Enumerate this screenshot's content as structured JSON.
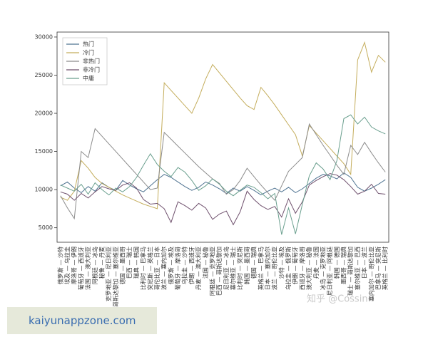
{
  "chart_data": {
    "type": "line",
    "categories": [
      "俄罗斯 — 沙特",
      "埃及 — 乌拉圭",
      "摩洛哥 — 伊朗",
      "葡萄牙 — 西班牙",
      "法国 — 澳大利亚",
      "阿根廷 — 冰岛",
      "秘鲁 — 丹麦",
      "克罗地亚 — 尼日利亚",
      "哥斯达黎加 — 塞尔维亚",
      "德国 — 墨西哥",
      "巴西 — 瑞士",
      "瑞典 — 韩国",
      "比利时 — 巴拿马",
      "突尼斯 — 英格兰",
      "哥伦比亚 — 日本",
      "波兰 — 塞内加尔",
      "俄罗斯 — 埃及",
      "葡萄牙 — 摩洛哥",
      "乌拉圭 — 沙特",
      "伊朗 — 西班牙",
      "丹麦 — 澳大利亚",
      "法国 — 秘鲁",
      "阿根廷 — 克罗地亚",
      "巴西 — 哥斯达黎加",
      "尼日利亚 — 冰岛",
      "塞尔维亚 — 瑞士",
      "比利时 — 突尼斯",
      "韩国 — 墨西哥",
      "德国 — 瑞典",
      "英格兰 — 巴拿马",
      "日本 — 塞内加尔",
      "波兰 — 哥伦比亚",
      "沙特 — 埃及",
      "乌拉圭 — 俄罗斯",
      "伊朗 — 葡萄牙",
      "西班牙 — 摩洛哥",
      "澳大利亚 — 秘鲁",
      "丹麦 — 法国",
      "冰岛 — 克罗地亚",
      "尼日利亚 — 阿根廷",
      "韩国 — 德国",
      "墨西哥 — 瑞典",
      "瑞士 — 哥斯达黎加",
      "塞尔维亚 — 巴西",
      "日本 — 波兰",
      "塞内加尔 — 哥伦比亚",
      "巴拿马 — 突尼斯",
      "英格兰 — 比利时"
    ],
    "series": [
      {
        "name": "热门",
        "color": "#4f7391",
        "values": [
          10500,
          11000,
          10200,
          9600,
          10400,
          9800,
          10900,
          10300,
          9900,
          11200,
          10600,
          10100,
          9700,
          10500,
          11300,
          12000,
          11600,
          11000,
          10400,
          9900,
          10300,
          11000,
          10600,
          10100,
          9500,
          10200,
          9800,
          10400,
          9900,
          9300,
          9800,
          10200,
          9700,
          10300,
          9600,
          10100,
          10800,
          11500,
          12000,
          11800,
          11400,
          12200,
          11600,
          10300,
          9800,
          10200,
          10700,
          11300
        ]
      },
      {
        "name": "冷门",
        "color": "#c4ad5c",
        "values": [
          9000,
          8600,
          9800,
          13800,
          12800,
          11600,
          10800,
          10300,
          9800,
          9300,
          8900,
          8500,
          8100,
          7800,
          7500,
          24000,
          23000,
          22000,
          21000,
          20000,
          22000,
          24500,
          26400,
          25300,
          24200,
          23100,
          22000,
          21000,
          20500,
          23400,
          22300,
          21100,
          19800,
          18500,
          17200,
          14400,
          18400,
          17400,
          16400,
          15400,
          14400,
          13400,
          12000,
          27000,
          29300,
          25400,
          27600,
          26700
        ]
      },
      {
        "name": "非热门",
        "color": "#8c8c8c",
        "values": [
          9200,
          7600,
          6200,
          15000,
          14200,
          18000,
          17000,
          16000,
          15000,
          14000,
          13000,
          12000,
          11000,
          10000,
          10200,
          17500,
          16600,
          15700,
          14800,
          13900,
          13000,
          12200,
          11400,
          10800,
          9400,
          10000,
          11200,
          12800,
          11700,
          10600,
          9600,
          8600,
          10500,
          12400,
          13300,
          14200,
          18600,
          17200,
          15800,
          14500,
          13200,
          12000,
          15800,
          14600,
          16200,
          14800,
          13500,
          12300
        ]
      },
      {
        "name": "非冷门",
        "color": "#6e4f6c",
        "values": [
          9700,
          9400,
          8600,
          9500,
          8900,
          9700,
          10400,
          10100,
          9900,
          10600,
          10900,
          10200,
          8700,
          8100,
          8200,
          7500,
          5700,
          8400,
          7900,
          7300,
          8200,
          7600,
          6100,
          6800,
          7200,
          5400,
          7100,
          9800,
          8700,
          7900,
          7400,
          7800,
          6400,
          8800,
          6900,
          8400,
          10600,
          11200,
          11700,
          12100,
          11900,
          11300,
          10400,
          9400,
          9800,
          10700,
          9500,
          9400
        ]
      },
      {
        "name": "中庸",
        "color": "#6a9f8e",
        "values": [
          10600,
          10200,
          9800,
          10700,
          9400,
          10900,
          10000,
          9300,
          10200,
          9700,
          10400,
          11600,
          13200,
          14700,
          13300,
          12400,
          11700,
          12900,
          12300,
          11200,
          9900,
          10500,
          11400,
          10700,
          9800,
          9200,
          9900,
          10600,
          10300,
          9600,
          8800,
          9500,
          4100,
          7600,
          4200,
          8100,
          11800,
          13500,
          12700,
          11300,
          13800,
          19300,
          19800,
          18600,
          19500,
          18200,
          17700,
          17300
        ]
      }
    ],
    "ylim": [
      3100,
      30650
    ],
    "yticks": [
      5000,
      10000,
      15000,
      20000,
      25000,
      30000
    ],
    "grid": false,
    "legend": "upper left"
  },
  "watermark": "知乎 @Cossin",
  "footer_link": "kaiyunappzone.com"
}
